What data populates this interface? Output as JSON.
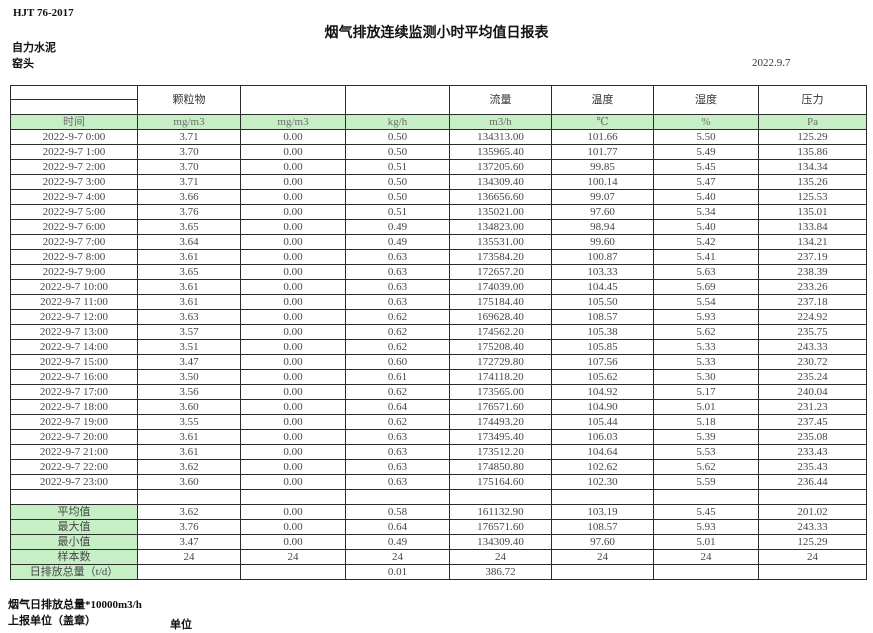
{
  "page": {
    "doc_code": "HJT 76-2017",
    "title": "烟气排放连续监测小时平均值日报表",
    "company": "自力水泥",
    "station": "窑头",
    "date": "2022.9.7"
  },
  "colors": {
    "header_green": "#c6efc6",
    "border": "#2b2b2b"
  },
  "table": {
    "group_headers": [
      "",
      "颗粒物",
      "",
      "",
      "流量",
      "温度",
      "湿度",
      "压力"
    ],
    "unit_row": [
      "时间",
      "mg/m3",
      "mg/m3",
      "kg/h",
      "m3/h",
      "℃",
      "%",
      "Pa"
    ],
    "rows": [
      [
        "2022-9-7 0:00",
        "3.71",
        "0.00",
        "0.50",
        "134313.00",
        "101.66",
        "5.50",
        "125.29"
      ],
      [
        "2022-9-7 1:00",
        "3.70",
        "0.00",
        "0.50",
        "135965.40",
        "101.77",
        "5.49",
        "135.86"
      ],
      [
        "2022-9-7 2:00",
        "3.70",
        "0.00",
        "0.51",
        "137205.60",
        "99.85",
        "5.45",
        "134.34"
      ],
      [
        "2022-9-7 3:00",
        "3.71",
        "0.00",
        "0.50",
        "134309.40",
        "100.14",
        "5.47",
        "135.26"
      ],
      [
        "2022-9-7 4:00",
        "3.66",
        "0.00",
        "0.50",
        "136656.60",
        "99.07",
        "5.40",
        "125.53"
      ],
      [
        "2022-9-7 5:00",
        "3.76",
        "0.00",
        "0.51",
        "135021.00",
        "97.60",
        "5.34",
        "135.01"
      ],
      [
        "2022-9-7 6:00",
        "3.65",
        "0.00",
        "0.49",
        "134823.00",
        "98.94",
        "5.40",
        "133.84"
      ],
      [
        "2022-9-7 7:00",
        "3.64",
        "0.00",
        "0.49",
        "135531.00",
        "99.60",
        "5.42",
        "134.21"
      ],
      [
        "2022-9-7 8:00",
        "3.61",
        "0.00",
        "0.63",
        "173584.20",
        "100.87",
        "5.41",
        "237.19"
      ],
      [
        "2022-9-7 9:00",
        "3.65",
        "0.00",
        "0.63",
        "172657.20",
        "103.33",
        "5.63",
        "238.39"
      ],
      [
        "2022-9-7 10:00",
        "3.61",
        "0.00",
        "0.63",
        "174039.00",
        "104.45",
        "5.69",
        "233.26"
      ],
      [
        "2022-9-7 11:00",
        "3.61",
        "0.00",
        "0.63",
        "175184.40",
        "105.50",
        "5.54",
        "237.18"
      ],
      [
        "2022-9-7 12:00",
        "3.63",
        "0.00",
        "0.62",
        "169628.40",
        "108.57",
        "5.93",
        "224.92"
      ],
      [
        "2022-9-7 13:00",
        "3.57",
        "0.00",
        "0.62",
        "174562.20",
        "105.38",
        "5.62",
        "235.75"
      ],
      [
        "2022-9-7 14:00",
        "3.51",
        "0.00",
        "0.62",
        "175208.40",
        "105.85",
        "5.33",
        "243.33"
      ],
      [
        "2022-9-7 15:00",
        "3.47",
        "0.00",
        "0.60",
        "172729.80",
        "107.56",
        "5.33",
        "230.72"
      ],
      [
        "2022-9-7 16:00",
        "3.50",
        "0.00",
        "0.61",
        "174118.20",
        "105.62",
        "5.30",
        "235.24"
      ],
      [
        "2022-9-7 17:00",
        "3.56",
        "0.00",
        "0.62",
        "173565.00",
        "104.92",
        "5.17",
        "240.04"
      ],
      [
        "2022-9-7 18:00",
        "3.60",
        "0.00",
        "0.64",
        "176571.60",
        "104.90",
        "5.01",
        "231.23"
      ],
      [
        "2022-9-7 19:00",
        "3.55",
        "0.00",
        "0.62",
        "174493.20",
        "105.44",
        "5.18",
        "237.45"
      ],
      [
        "2022-9-7 20:00",
        "3.61",
        "0.00",
        "0.63",
        "173495.40",
        "106.03",
        "5.39",
        "235.08"
      ],
      [
        "2022-9-7 21:00",
        "3.61",
        "0.00",
        "0.63",
        "173512.20",
        "104.64",
        "5.53",
        "233.43"
      ],
      [
        "2022-9-7 22:00",
        "3.62",
        "0.00",
        "0.63",
        "174850.80",
        "102.62",
        "5.62",
        "235.43"
      ],
      [
        "2022-9-7 23:00",
        "3.60",
        "0.00",
        "0.63",
        "175164.60",
        "102.30",
        "5.59",
        "236.44"
      ]
    ],
    "summary_rows": [
      [
        "平均值",
        "3.62",
        "0.00",
        "0.58",
        "161132.90",
        "103.19",
        "5.45",
        "201.02"
      ],
      [
        "最大值",
        "3.76",
        "0.00",
        "0.64",
        "176571.60",
        "108.57",
        "5.93",
        "243.33"
      ],
      [
        "最小值",
        "3.47",
        "0.00",
        "0.49",
        "134309.40",
        "97.60",
        "5.01",
        "125.29"
      ],
      [
        "样本数",
        "24",
        "24",
        "24",
        "24",
        "24",
        "24",
        "24"
      ]
    ],
    "total_rows": [
      [
        "日排放总量（t/d）",
        "",
        "",
        "0.01",
        "386.72",
        "",
        "",
        ""
      ]
    ]
  },
  "footer": {
    "flow_total_note": "烟气日排放总量*10000m3/h",
    "reporting_unit": "上报单位（盖章）",
    "unit": "单位"
  }
}
